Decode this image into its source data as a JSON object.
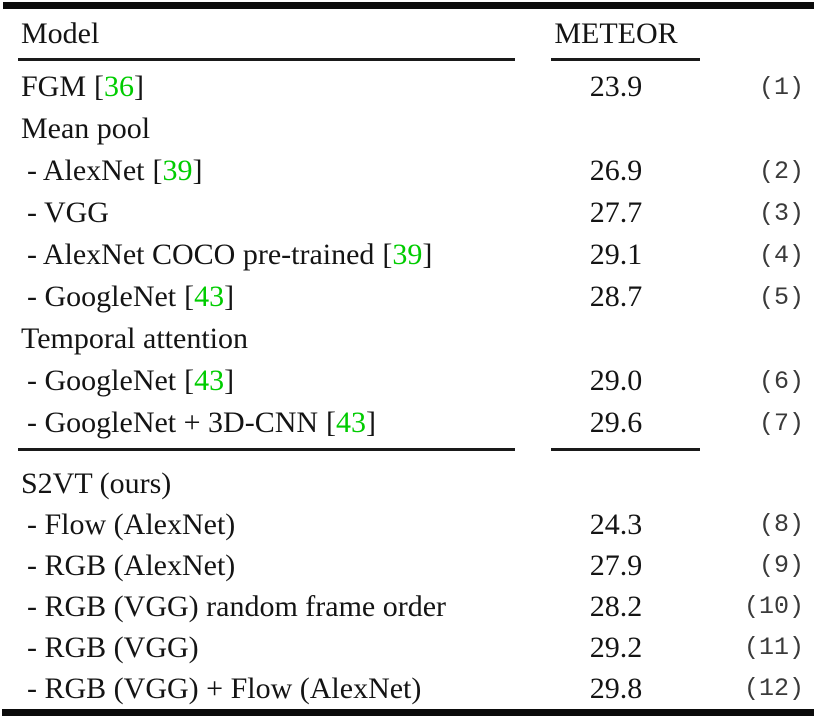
{
  "table": {
    "header": {
      "model": "Model",
      "meteor": "METEOR"
    },
    "citation_color": "#00cc00",
    "row_number_color": "#3a3a3a",
    "rule_color": "#0b0b0b",
    "sections": [
      {
        "rows": [
          {
            "label": "FGM",
            "cite": "36",
            "meteor": "23.9",
            "num": "(1)",
            "indent": false
          },
          {
            "label": "Mean pool",
            "cite": null,
            "meteor": "",
            "num": "",
            "indent": false
          },
          {
            "label": "AlexNet",
            "cite": "39",
            "meteor": "26.9",
            "num": "(2)",
            "indent": true
          },
          {
            "label": "VGG",
            "cite": null,
            "meteor": "27.7",
            "num": "(3)",
            "indent": true
          },
          {
            "label": "AlexNet COCO pre-trained",
            "cite": "39",
            "meteor": "29.1",
            "num": "(4)",
            "indent": true
          },
          {
            "label": "GoogleNet",
            "cite": "43",
            "meteor": "28.7",
            "num": "(5)",
            "indent": true
          },
          {
            "label": "Temporal attention",
            "cite": null,
            "meteor": "",
            "num": "",
            "indent": false
          },
          {
            "label": "GoogleNet",
            "cite": "43",
            "meteor": "29.0",
            "num": "(6)",
            "indent": true
          },
          {
            "label": "GoogleNet + 3D-CNN",
            "cite": "43",
            "meteor": "29.6",
            "num": "(7)",
            "indent": true
          }
        ]
      },
      {
        "rows": [
          {
            "label": "S2VT (ours)",
            "cite": null,
            "meteor": "",
            "num": "",
            "indent": false
          },
          {
            "label": "Flow (AlexNet)",
            "cite": null,
            "meteor": "24.3",
            "num": "(8)",
            "indent": true
          },
          {
            "label": "RGB (AlexNet)",
            "cite": null,
            "meteor": "27.9",
            "num": "(9)",
            "indent": true
          },
          {
            "label": "RGB (VGG) random frame order",
            "cite": null,
            "meteor": "28.2",
            "num": "(10)",
            "indent": true
          },
          {
            "label": "RGB (VGG)",
            "cite": null,
            "meteor": "29.2",
            "num": "(11)",
            "indent": true
          },
          {
            "label": "RGB (VGG) + Flow (AlexNet)",
            "cite": null,
            "meteor": "29.8",
            "num": "(12)",
            "indent": true
          }
        ]
      }
    ]
  }
}
